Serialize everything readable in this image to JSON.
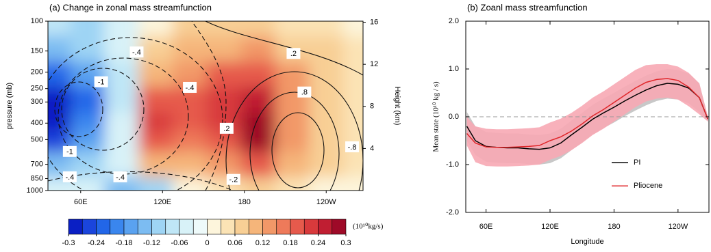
{
  "chart_data": [
    {
      "type": "contourf",
      "title": "(a) Change in zonal mass streamfunction",
      "ylabel": "pressure (mb)",
      "y2label": "Height (km)",
      "xlim": [
        36,
        267
      ],
      "xticks": [
        {
          "value": 60,
          "label": "60E"
        },
        {
          "value": 120,
          "label": "120E"
        },
        180,
        {
          "value": 240,
          "label": "120W"
        }
      ],
      "ylim": [
        1000,
        100
      ],
      "yscale": "log",
      "yticks": [
        100,
        150,
        200,
        250,
        300,
        400,
        500,
        700,
        850,
        1000
      ],
      "y2lim": [
        0,
        16.1
      ],
      "y2ticks": [
        4,
        8,
        12,
        16
      ],
      "x": [
        40,
        65,
        90,
        115,
        140,
        165,
        190,
        215,
        240,
        265
      ],
      "y": [
        100,
        150,
        200,
        300,
        400,
        500,
        700,
        1000
      ],
      "z": [
        [
          -0.08,
          -0.1,
          -0.06,
          0.02,
          0.06,
          0.06,
          0.06,
          0.04,
          0.04,
          0.02
        ],
        [
          -0.15,
          -0.12,
          -0.06,
          0.06,
          0.1,
          0.1,
          0.12,
          0.08,
          0.06,
          0.04
        ],
        [
          -0.24,
          -0.18,
          -0.08,
          0.1,
          0.14,
          0.18,
          0.2,
          0.12,
          0.08,
          0.04
        ],
        [
          -0.28,
          -0.22,
          -0.08,
          0.2,
          0.18,
          0.22,
          0.26,
          0.14,
          0.08,
          0.04
        ],
        [
          -0.28,
          -0.2,
          -0.06,
          0.22,
          0.18,
          0.22,
          0.3,
          0.14,
          0.08,
          0.04
        ],
        [
          -0.25,
          -0.18,
          -0.06,
          0.2,
          0.16,
          0.2,
          0.3,
          0.12,
          0.08,
          0.04
        ],
        [
          -0.15,
          -0.12,
          -0.04,
          0.1,
          0.1,
          0.14,
          0.2,
          0.1,
          0.06,
          0.03
        ],
        [
          -0.05,
          -0.06,
          -0.15,
          -0.1,
          0.02,
          0.04,
          0.06,
          0.04,
          0.02,
          0.01
        ]
      ],
      "colorbar": {
        "label": "(10¹⁰kg/s)",
        "levels": [
          -0.3,
          -0.27,
          -0.24,
          -0.21,
          -0.18,
          -0.15,
          -0.12,
          -0.09,
          -0.06,
          -0.03,
          0,
          0.03,
          0.06,
          0.09,
          0.12,
          0.15,
          0.18,
          0.21,
          0.24,
          0.27,
          0.3
        ],
        "colors": [
          "#0a1fc4",
          "#1a45dc",
          "#2266e8",
          "#3a86ee",
          "#5aa2f0",
          "#7cbcf2",
          "#9ed4f4",
          "#bfe6f6",
          "#d8f2f8",
          "#eefafa",
          "#fdf5dc",
          "#fbe3b5",
          "#f8cf95",
          "#f5b57a",
          "#f29868",
          "#ee7a5a",
          "#e65a4c",
          "#d83a3c",
          "#c01e32",
          "#9e0a28"
        ],
        "ticks": [
          -0.3,
          -0.24,
          -0.18,
          -0.12,
          -0.06,
          0,
          0.06,
          0.12,
          0.18,
          0.24,
          0.3
        ]
      },
      "contour_labels": [
        {
          "text": "-.4",
          "x": 101,
          "y": 152
        },
        {
          "text": ".2",
          "x": 216,
          "y": 155
        },
        {
          "text": "-1",
          "x": 75,
          "y": 228
        },
        {
          "text": "-.4",
          "x": 140,
          "y": 246
        },
        {
          "text": ".8",
          "x": 224,
          "y": 262
        },
        {
          "text": ".2",
          "x": 167,
          "y": 429
        },
        {
          "text": "-1",
          "x": 52,
          "y": 588
        },
        {
          "text": "-.8",
          "x": 259,
          "y": 552
        },
        {
          "text": "-.4",
          "x": 52,
          "y": 830
        },
        {
          "text": "-.4",
          "x": 89,
          "y": 830
        },
        {
          "text": "-.2",
          "x": 172,
          "y": 860
        }
      ]
    },
    {
      "type": "line",
      "title": "(b) Zoanl mass streamfunction",
      "xlabel": "Longitude",
      "ylabel": "Mean state (10¹⁰ kg / s)",
      "xlim": [
        41,
        269
      ],
      "xticks": [
        {
          "value": 60,
          "label": "60E"
        },
        {
          "value": 120,
          "label": "120E"
        },
        180,
        {
          "value": 240,
          "label": "120W"
        }
      ],
      "ylim": [
        -2,
        2
      ],
      "yticks": [
        {
          "value": -2,
          "label": "-2.0"
        },
        {
          "value": -1,
          "label": "-1.0"
        },
        {
          "value": 0,
          "label": "0.0"
        },
        {
          "value": 1,
          "label": "1.0"
        },
        {
          "value": 2,
          "label": "2.0"
        }
      ],
      "reference_line": 0,
      "legend": "lower right",
      "x": [
        42,
        50,
        60,
        70,
        80,
        90,
        100,
        110,
        120,
        130,
        140,
        150,
        160,
        170,
        180,
        190,
        200,
        210,
        220,
        230,
        240,
        250,
        260,
        268
      ],
      "series": [
        {
          "name": "PI",
          "color": "#000000",
          "band_color": "#c8c8c8",
          "values": [
            -0.2,
            -0.5,
            -0.62,
            -0.64,
            -0.65,
            -0.65,
            -0.67,
            -0.68,
            -0.65,
            -0.55,
            -0.38,
            -0.22,
            -0.05,
            0.08,
            0.2,
            0.33,
            0.45,
            0.56,
            0.65,
            0.7,
            0.68,
            0.6,
            0.4,
            -0.05
          ],
          "low": [
            -0.5,
            -0.8,
            -0.94,
            -0.96,
            -0.97,
            -0.97,
            -0.99,
            -1.0,
            -0.97,
            -0.87,
            -0.7,
            -0.54,
            -0.37,
            -0.24,
            -0.12,
            0.01,
            0.13,
            0.24,
            0.33,
            0.38,
            0.36,
            0.28,
            0.1,
            -0.1
          ],
          "high": [
            0.1,
            -0.2,
            -0.32,
            -0.34,
            -0.35,
            -0.35,
            -0.37,
            -0.38,
            -0.35,
            -0.25,
            -0.08,
            0.08,
            0.25,
            0.38,
            0.5,
            0.63,
            0.75,
            0.86,
            0.95,
            1.0,
            0.98,
            0.9,
            0.7,
            0.0
          ]
        },
        {
          "name": "Pliocene",
          "color": "#e0262a",
          "band_color": "#f7a8b4",
          "values": [
            -0.35,
            -0.55,
            -0.63,
            -0.64,
            -0.64,
            -0.63,
            -0.62,
            -0.6,
            -0.5,
            -0.42,
            -0.3,
            -0.15,
            0.02,
            0.15,
            0.3,
            0.45,
            0.6,
            0.72,
            0.78,
            0.8,
            0.76,
            0.62,
            0.4,
            -0.05
          ],
          "low": [
            -0.6,
            -0.95,
            -1.03,
            -1.04,
            -1.04,
            -1.03,
            -1.02,
            -1.0,
            -0.9,
            -0.82,
            -0.7,
            -0.55,
            -0.38,
            -0.25,
            -0.1,
            0.05,
            0.2,
            0.32,
            0.38,
            0.4,
            0.36,
            0.22,
            0.05,
            -0.1
          ],
          "high": [
            0.0,
            -0.2,
            -0.25,
            -0.26,
            -0.26,
            -0.25,
            -0.24,
            -0.22,
            -0.12,
            -0.04,
            0.08,
            0.23,
            0.4,
            0.53,
            0.68,
            0.83,
            0.98,
            1.08,
            1.1,
            1.1,
            1.05,
            0.92,
            0.7,
            0.0
          ]
        }
      ]
    }
  ]
}
